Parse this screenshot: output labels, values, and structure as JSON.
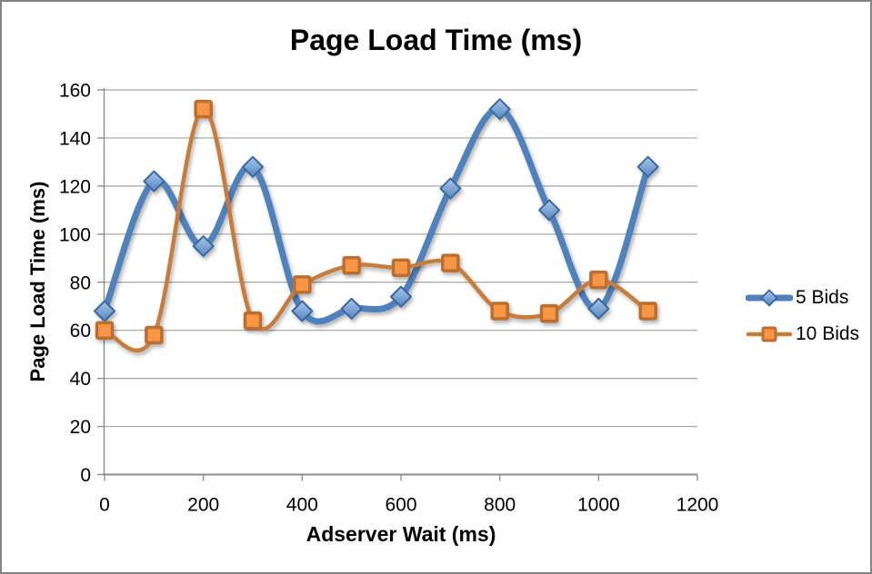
{
  "window": {
    "background_color": "#FFFFFF",
    "border_color": "#848484"
  },
  "chart_data": {
    "type": "line",
    "title": "Page Load Time (ms)",
    "xlabel": "Adserver Wait (ms)",
    "ylabel": "Page Load Time (ms)",
    "x": [
      0,
      100,
      200,
      300,
      400,
      500,
      600,
      700,
      800,
      900,
      1000,
      1100
    ],
    "series": [
      {
        "name": "5 Bids",
        "marker": "diamond",
        "line_color": "#4F81BD",
        "line_width": 7,
        "marker_fill_top": "#A9C7EA",
        "marker_fill_bottom": "#5585C2",
        "marker_stroke": "#3A689D",
        "values": [
          68,
          122,
          95,
          128,
          68,
          69,
          74,
          119,
          152,
          110,
          69,
          128
        ]
      },
      {
        "name": "10 Bids",
        "marker": "square",
        "line_color": "#C67D3B",
        "line_width": 4.5,
        "marker_fill_top": "#F79646",
        "marker_fill_bottom": "#F79646",
        "marker_stroke": "#BC6E2E",
        "values": [
          60,
          58,
          152,
          64,
          79,
          87,
          86,
          88,
          68,
          67,
          81,
          68
        ]
      }
    ],
    "xlim": [
      0,
      1200
    ],
    "ylim": [
      0,
      160
    ],
    "x_ticks": [
      0,
      200,
      400,
      600,
      800,
      1000,
      1200
    ],
    "y_ticks": [
      0,
      20,
      40,
      60,
      80,
      100,
      120,
      140,
      160
    ],
    "grid": "horizontal",
    "gridline_color": "#A3A3A3",
    "axis_line_color": "#8E8E8E",
    "tick_label_color": "#000000",
    "legend_position": "right",
    "smooth_lines": true
  }
}
